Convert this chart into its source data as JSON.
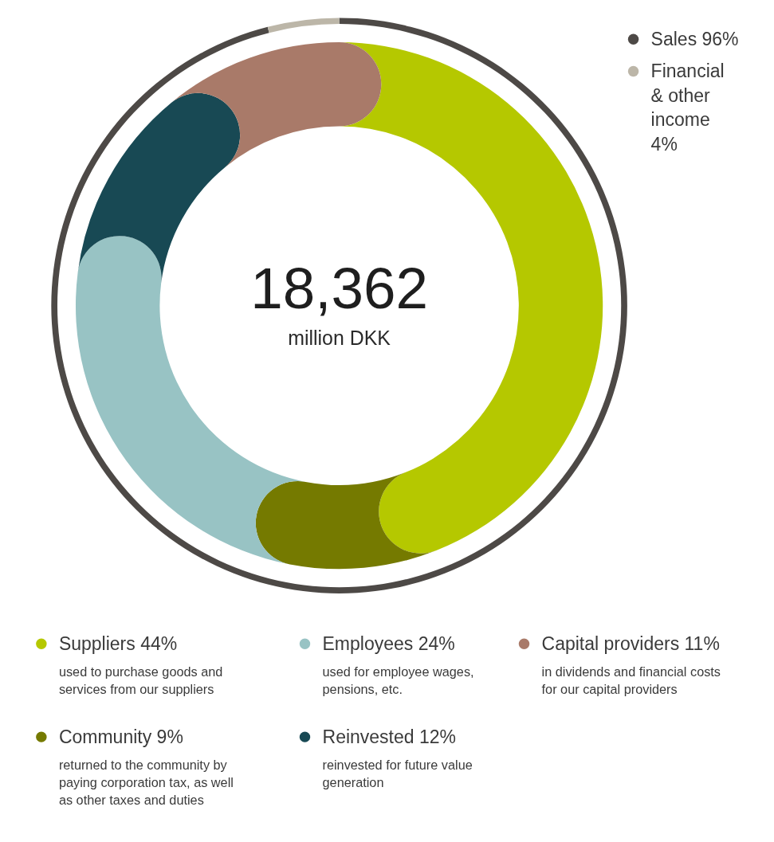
{
  "chart_data": [
    {
      "type": "donut",
      "categories": [
        "Sales",
        "Financial & other income"
      ],
      "values": [
        96,
        4
      ],
      "value_labels": [
        "96%",
        "4%"
      ],
      "colors": [
        "#4d4946",
        "#bcb6a8"
      ],
      "legend": "top right"
    },
    {
      "type": "donut",
      "title": "18,362",
      "subtitle": "million DKK",
      "categories": [
        "Suppliers",
        "Community",
        "Employees",
        "Reinvested",
        "Capital providers"
      ],
      "values": [
        44,
        9,
        24,
        12,
        11
      ],
      "value_labels": [
        "44%",
        "9%",
        "24%",
        "12%",
        "11%"
      ],
      "colors": [
        "#b5c800",
        "#757a00",
        "#98c3c4",
        "#184954",
        "#a97a69"
      ],
      "legend": "bottom",
      "annotations": [
        "used to purchase goods and services from our suppliers",
        "returned to the community by paying corporation tax, as well as other taxes and duties",
        "used for employee wages, pensions, etc.",
        "reinvested for future value generation",
        "in dividends and financial costs for our capital providers"
      ]
    }
  ]
}
